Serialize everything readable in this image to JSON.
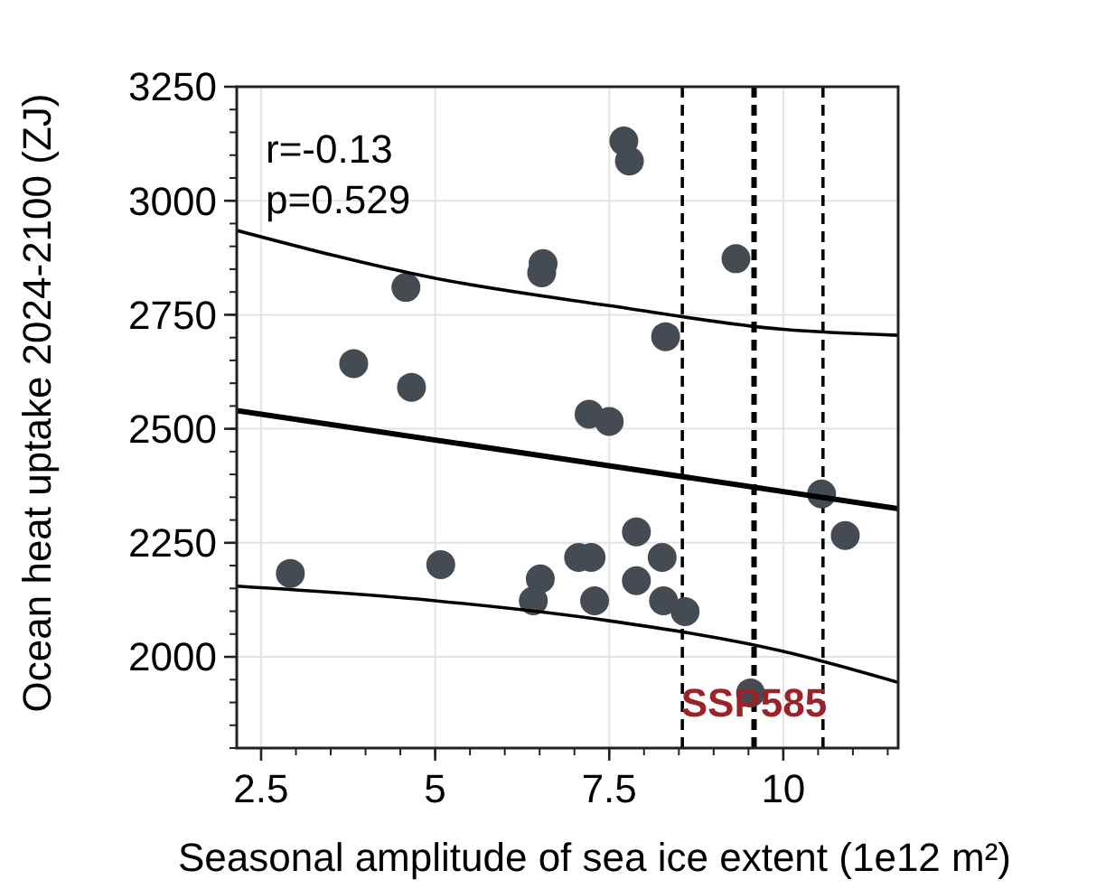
{
  "chart_data": {
    "type": "scatter",
    "xlabel": "Seasonal amplitude of sea ice extent (1e12 m²)",
    "ylabel": "Ocean heat uptake 2024-2100 (ZJ)",
    "xlim": [
      2.15,
      11.65
    ],
    "xticks": [
      {
        "value": 2.5,
        "label": "2.5"
      },
      5,
      {
        "value": 7.5,
        "label": "7.5"
      },
      10
    ],
    "ylim": [
      1800,
      3250
    ],
    "yticks": [
      2000,
      2250,
      2500,
      2750,
      3000,
      3250
    ],
    "grid": true,
    "marker": "circle",
    "series": [
      {
        "color": "#454b53",
        "x": [
          2.92,
          3.83,
          4.58,
          4.66,
          5.08,
          6.55,
          6.53,
          6.41,
          6.51,
          7.71,
          7.79,
          7.21,
          7.5,
          7.06,
          7.24,
          7.29,
          7.89,
          7.89,
          8.31,
          8.26,
          8.28,
          8.59,
          9.32,
          9.53,
          10.55,
          10.89
        ],
        "values": [
          2183,
          2643,
          2810,
          2591,
          2202,
          2862,
          2842,
          2123,
          2171,
          3131,
          3087,
          2532,
          2516,
          2218,
          2218,
          2123,
          2274,
          2167,
          2702,
          2218,
          2123,
          2099,
          2873,
          1921,
          2357,
          2266
        ]
      },
      {
        "type": "line",
        "marker": "none",
        "color": "#000000",
        "x": [
          2.15,
          11.65
        ],
        "values": [
          2540,
          2325
        ]
      },
      {
        "type": "line",
        "marker": "none",
        "color": "#000000",
        "x": [
          2.15,
          5,
          7.5,
          10,
          11.65
        ],
        "values": [
          2935,
          2830,
          2770,
          2718,
          2705
        ]
      },
      {
        "type": "line",
        "marker": "none",
        "color": "#000000",
        "x": [
          2.15,
          5,
          7.5,
          10,
          11.65
        ],
        "values": [
          2155,
          2123,
          2079,
          2012,
          1944
        ]
      }
    ],
    "ref_lines": [
      {
        "axis": "x",
        "value": 8.55,
        "line_style": "dashed"
      },
      {
        "axis": "x",
        "value": 9.58,
        "line_style": "dashed"
      },
      {
        "axis": "x",
        "value": 10.57,
        "line_style": "dashed"
      }
    ],
    "annotations": [
      "r=-0.13",
      "p=0.529",
      {
        "text": "SSP585",
        "x": 9.58,
        "y": 1870
      }
    ]
  }
}
